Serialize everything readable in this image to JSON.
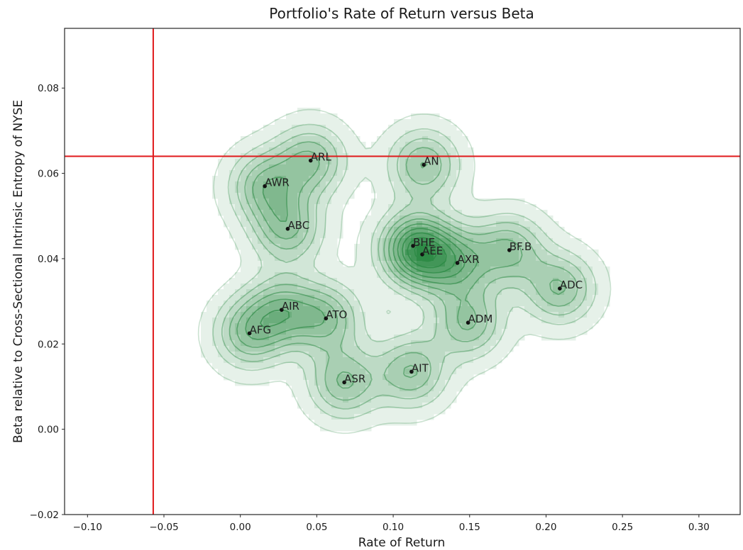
{
  "chart_data": {
    "type": "scatter",
    "title": "Portfolio's Rate of Return versus Beta",
    "xlabel": "Rate of Return",
    "ylabel": "Beta relative to Cross-Sectional Intrinsic Entropy of NYSE",
    "xlim": [
      -0.115,
      0.327
    ],
    "ylim": [
      -0.02,
      0.094
    ],
    "x_ticks": [
      -0.1,
      -0.05,
      0.0,
      0.05,
      0.1,
      0.15,
      0.2,
      0.25,
      0.3
    ],
    "x_tick_labels": [
      "−0.10",
      "−0.05",
      "0.00",
      "0.05",
      "0.10",
      "0.15",
      "0.20",
      "0.25",
      "0.30"
    ],
    "y_ticks": [
      -0.02,
      0.0,
      0.02,
      0.04,
      0.06,
      0.08
    ],
    "y_tick_labels": [
      "−0.02",
      "0.00",
      "0.02",
      "0.04",
      "0.06",
      "0.08"
    ],
    "grid": false,
    "density_overlay": "kde",
    "density_color": "#2e8b46",
    "reference_lines": {
      "vertical_x": -0.057,
      "horizontal_y": 0.064,
      "color": "#e0191b"
    },
    "points": [
      {
        "label": "ARL",
        "x": 0.046,
        "y": 0.063
      },
      {
        "label": "AN",
        "x": 0.12,
        "y": 0.062
      },
      {
        "label": "AWR",
        "x": 0.016,
        "y": 0.057
      },
      {
        "label": "ABC",
        "x": 0.031,
        "y": 0.047
      },
      {
        "label": "BHE",
        "x": 0.113,
        "y": 0.043
      },
      {
        "label": "AEE",
        "x": 0.119,
        "y": 0.041
      },
      {
        "label": "AXR",
        "x": 0.142,
        "y": 0.039
      },
      {
        "label": "BF.B",
        "x": 0.176,
        "y": 0.042
      },
      {
        "label": "ADC",
        "x": 0.209,
        "y": 0.033
      },
      {
        "label": "AIR",
        "x": 0.027,
        "y": 0.028
      },
      {
        "label": "ATO",
        "x": 0.056,
        "y": 0.026
      },
      {
        "label": "ADM",
        "x": 0.149,
        "y": 0.025
      },
      {
        "label": "AFG",
        "x": 0.006,
        "y": 0.0225
      },
      {
        "label": "AIT",
        "x": 0.112,
        "y": 0.0135
      },
      {
        "label": "ASR",
        "x": 0.068,
        "y": 0.011
      }
    ]
  }
}
